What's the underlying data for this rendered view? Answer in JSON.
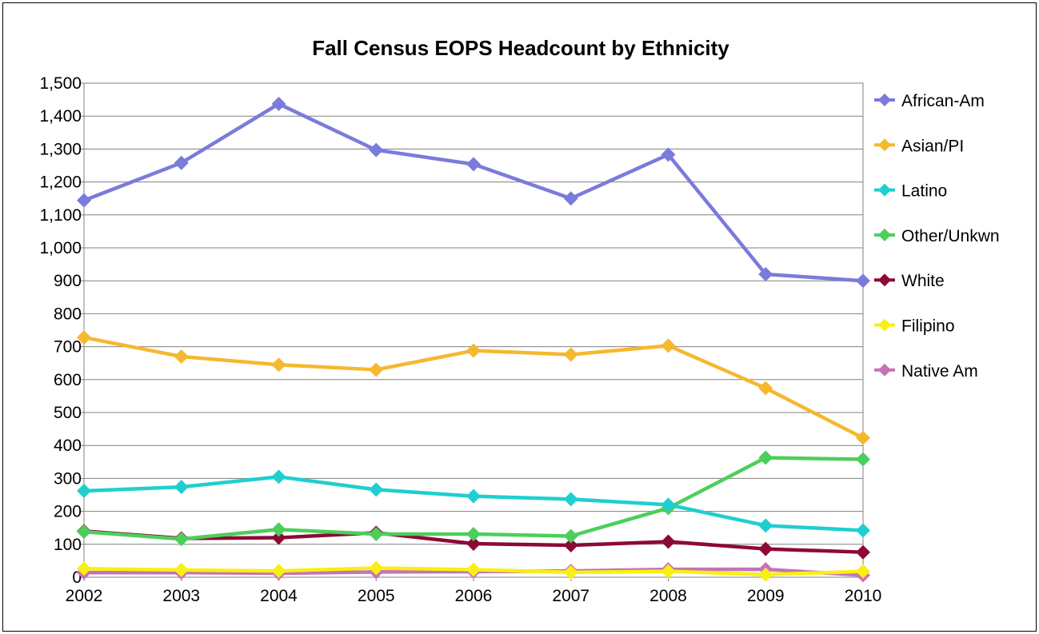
{
  "chart_data": {
    "type": "line",
    "title": "Fall Census EOPS Headcount by Ethnicity",
    "xlabel": "",
    "ylabel": "",
    "categories": [
      "2002",
      "2003",
      "2004",
      "2005",
      "2006",
      "2007",
      "2008",
      "2009",
      "2010"
    ],
    "ylim": [
      0,
      1500
    ],
    "yticks": [
      0,
      100,
      200,
      300,
      400,
      500,
      600,
      700,
      800,
      900,
      1000,
      1100,
      1200,
      1300,
      1400,
      1500
    ],
    "ytick_labels": [
      "0",
      "100",
      "200",
      "300",
      "400",
      "500",
      "600",
      "700",
      "800",
      "900",
      "1,000",
      "1,100",
      "1,200",
      "1,300",
      "1,400",
      "1,500"
    ],
    "grid": true,
    "legend_position": "right",
    "series": [
      {
        "name": "African-Am",
        "color": "#7b7bdc",
        "values": [
          1144,
          1258,
          1437,
          1297,
          1254,
          1150,
          1283,
          920,
          900
        ]
      },
      {
        "name": "Asian/PI",
        "color": "#f5b82e",
        "values": [
          728,
          670,
          645,
          630,
          688,
          676,
          703,
          574,
          423
        ]
      },
      {
        "name": "Latino",
        "color": "#1fcfcf",
        "values": [
          262,
          274,
          305,
          266,
          246,
          237,
          220,
          157,
          142
        ]
      },
      {
        "name": "Other/Unkwn",
        "color": "#4ccf5a",
        "values": [
          138,
          116,
          145,
          131,
          131,
          125,
          210,
          363,
          358
        ]
      },
      {
        "name": "White",
        "color": "#8c0a33",
        "values": [
          140,
          118,
          120,
          135,
          102,
          97,
          108,
          86,
          76
        ]
      },
      {
        "name": "Filipino",
        "color": "#f8f012",
        "values": [
          26,
          22,
          19,
          28,
          23,
          15,
          18,
          8,
          18
        ]
      },
      {
        "name": "Native Am",
        "color": "#c871b7",
        "values": [
          14,
          14,
          12,
          16,
          17,
          19,
          24,
          24,
          6
        ]
      }
    ]
  }
}
